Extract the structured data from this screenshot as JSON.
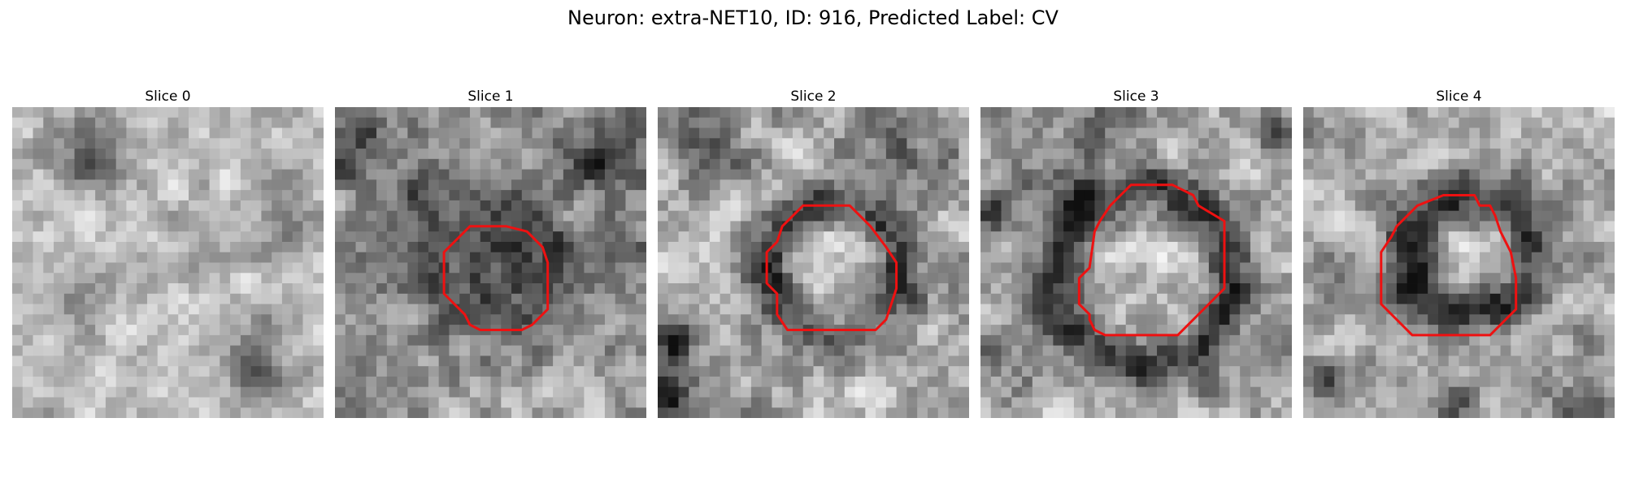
{
  "figure": {
    "title": "Neuron: extra-NET10, ID: 916, Predicted Label: CV"
  },
  "slices": [
    {
      "title": "Slice 0",
      "has_outline": false
    },
    {
      "title": "Slice 1",
      "has_outline": true
    },
    {
      "title": "Slice 2",
      "has_outline": true
    },
    {
      "title": "Slice 3",
      "has_outline": true
    },
    {
      "title": "Slice 4",
      "has_outline": true
    }
  ],
  "colors": {
    "outline": "#ee1111",
    "background": "#ffffff"
  }
}
